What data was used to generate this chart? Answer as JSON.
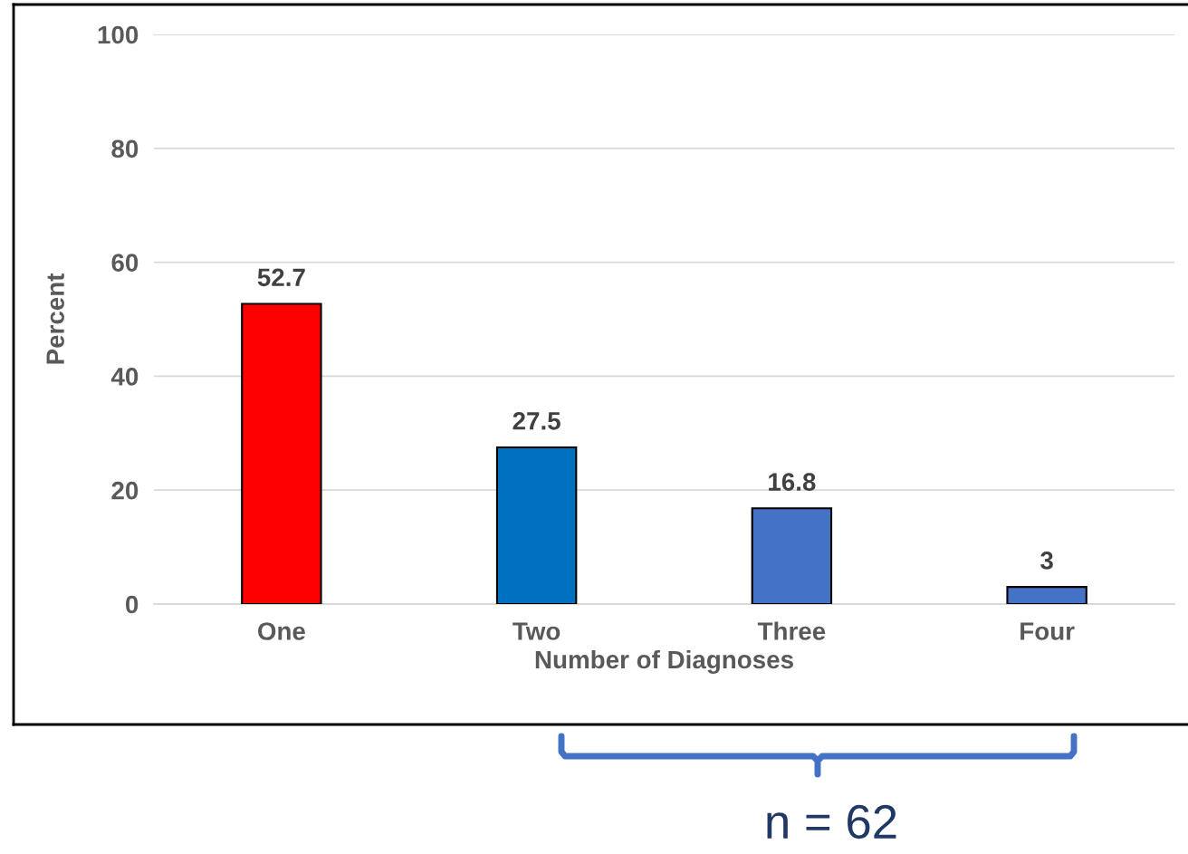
{
  "chart_data": {
    "type": "bar",
    "categories": [
      "One",
      "Two",
      "Three",
      "Four"
    ],
    "values": [
      52.7,
      27.5,
      16.8,
      3
    ],
    "colors": [
      "#ff0000",
      "#0070c0",
      "#4472c4",
      "#4472c4"
    ],
    "xlabel": "Number of Diagnoses",
    "ylabel": "Percent",
    "ylim": [
      0,
      100
    ],
    "yticks": [
      0,
      20,
      40,
      60,
      80,
      100
    ],
    "grid": "y",
    "data_labels": true,
    "annotations": [
      "n = 62"
    ]
  }
}
